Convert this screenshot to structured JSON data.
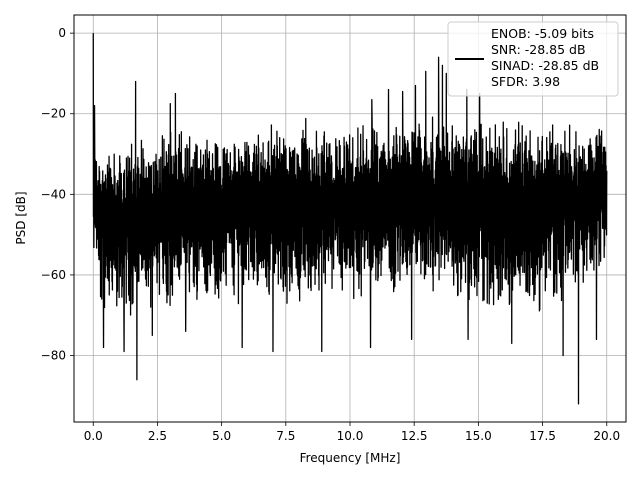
{
  "chart_data": {
    "type": "line",
    "title": "",
    "xlabel": "Frequency [MHz]",
    "ylabel": "PSD [dB]",
    "xlim": [
      -0.75,
      20.75
    ],
    "ylim": [
      -96.5,
      4.5
    ],
    "xticks": [
      0.0,
      2.5,
      5.0,
      7.5,
      10.0,
      12.5,
      15.0,
      17.5,
      20.0
    ],
    "xtick_labels": [
      "0.0",
      "2.5",
      "5.0",
      "7.5",
      "10.0",
      "12.5",
      "15.0",
      "17.5",
      "20.0"
    ],
    "yticks": [
      0,
      -20,
      -40,
      -60,
      -80
    ],
    "ytick_labels": [
      "0",
      "−20",
      "−40",
      "−60",
      "−80"
    ],
    "grid": true,
    "legend_position": "top-right",
    "line_color": "#000000",
    "series": [
      {
        "name": "",
        "style": "dense noise-like PSD trace",
        "x_range": [
          0,
          20
        ],
        "envelope": {
          "x": [
            0.0,
            0.3,
            1.0,
            2.5,
            5.0,
            7.5,
            10.0,
            12.5,
            13.5,
            15.0,
            17.5,
            20.0
          ],
          "upper": [
            -25,
            -25,
            -25,
            -23,
            -21,
            -20,
            -20,
            -19,
            -19,
            -19,
            -20,
            -21
          ],
          "lower": [
            -62,
            -70,
            -73,
            -70,
            -68,
            -68,
            -70,
            -66,
            -68,
            -70,
            -72,
            -60
          ]
        },
        "peaks": [
          {
            "x": 0.0,
            "y": 0.0
          },
          {
            "x": 0.05,
            "y": -18.0
          },
          {
            "x": 1.65,
            "y": -12.0
          },
          {
            "x": 3.0,
            "y": -17.5
          },
          {
            "x": 3.2,
            "y": -15.0
          },
          {
            "x": 10.85,
            "y": -16.5
          },
          {
            "x": 11.5,
            "y": -14.0
          },
          {
            "x": 12.05,
            "y": -14.5
          },
          {
            "x": 12.55,
            "y": -13.0
          },
          {
            "x": 12.95,
            "y": -9.5
          },
          {
            "x": 13.45,
            "y": -6.0
          },
          {
            "x": 13.6,
            "y": -8.0
          },
          {
            "x": 13.75,
            "y": -10.0
          },
          {
            "x": 14.55,
            "y": -14.0
          },
          {
            "x": 15.05,
            "y": -15.0
          }
        ],
        "dips": [
          {
            "x": 0.4,
            "y": -78.0
          },
          {
            "x": 1.2,
            "y": -79.0
          },
          {
            "x": 1.7,
            "y": -86.0
          },
          {
            "x": 2.3,
            "y": -75.0
          },
          {
            "x": 3.6,
            "y": -74.0
          },
          {
            "x": 5.8,
            "y": -78.0
          },
          {
            "x": 7.0,
            "y": -79.0
          },
          {
            "x": 8.9,
            "y": -79.0
          },
          {
            "x": 10.8,
            "y": -78.0
          },
          {
            "x": 12.4,
            "y": -76.0
          },
          {
            "x": 14.6,
            "y": -76.0
          },
          {
            "x": 16.3,
            "y": -77.0
          },
          {
            "x": 18.3,
            "y": -80.0
          },
          {
            "x": 18.9,
            "y": -92.0
          },
          {
            "x": 19.6,
            "y": -76.0
          }
        ]
      }
    ],
    "legend": {
      "lines": [
        "ENOB: -5.09 bits",
        "SNR: -28.85 dB",
        "SINAD: -28.85 dB",
        "SFDR: 3.98"
      ]
    }
  }
}
